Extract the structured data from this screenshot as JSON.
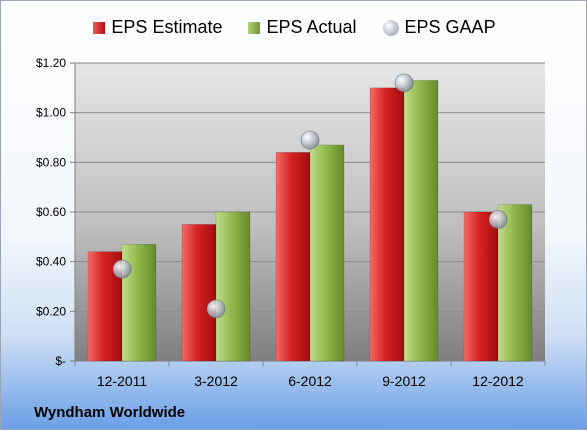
{
  "legend": {
    "estimate_label": "EPS Estimate",
    "actual_label": "EPS Actual",
    "gaap_label": "EPS GAAP"
  },
  "company": "Wyndham Worldwide",
  "colors": {
    "estimate": "#cc1f1f",
    "actual": "#8db548",
    "gaap": "#b8c0cc"
  },
  "chart_data": {
    "type": "bar",
    "categories": [
      "12-2011",
      "3-2012",
      "6-2012",
      "9-2012",
      "12-2012"
    ],
    "series": [
      {
        "name": "EPS Estimate",
        "kind": "bar",
        "values": [
          0.44,
          0.55,
          0.84,
          1.1,
          0.6
        ]
      },
      {
        "name": "EPS Actual",
        "kind": "bar",
        "values": [
          0.47,
          0.6,
          0.87,
          1.13,
          0.63
        ]
      },
      {
        "name": "EPS GAAP",
        "kind": "marker",
        "values": [
          0.37,
          0.21,
          0.89,
          1.12,
          0.57
        ]
      }
    ],
    "y_ticks": [
      0,
      0.2,
      0.4,
      0.6,
      0.8,
      1.0,
      1.2
    ],
    "y_tick_labels": [
      "$-",
      "$0.20",
      "$0.40",
      "$0.60",
      "$0.80",
      "$1.00",
      "$1.20"
    ],
    "ylim": [
      0,
      1.2
    ],
    "grid": true,
    "legend_position": "top"
  }
}
